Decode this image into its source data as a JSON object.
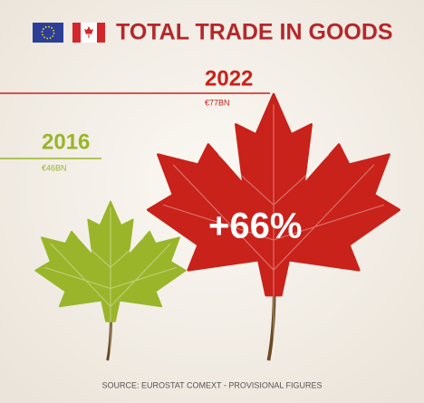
{
  "chart_data": {
    "type": "pictograph",
    "title": "TOTAL TRADE IN GOODS",
    "categories": [
      "2016",
      "2022"
    ],
    "values": [
      46,
      77
    ],
    "value_labels": [
      "€46BN",
      "€77BN"
    ],
    "colors": [
      "#9ab52a",
      "#c8221b"
    ],
    "annotation": "+66%",
    "source": "SOURCE: EUROSTAT COMEXT - PROVISIONAL FIGURES"
  }
}
